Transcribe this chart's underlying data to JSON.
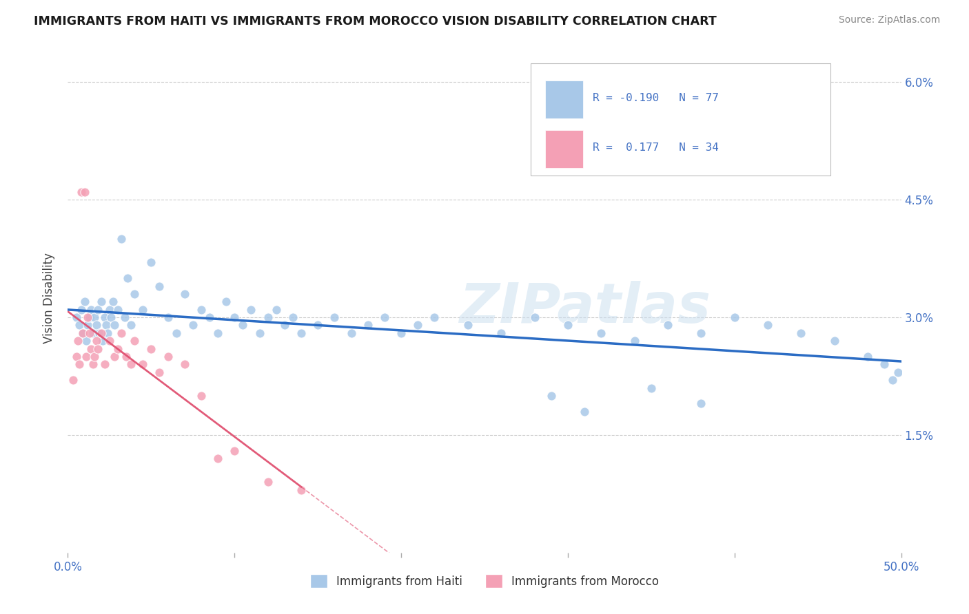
{
  "title": "IMMIGRANTS FROM HAITI VS IMMIGRANTS FROM MOROCCO VISION DISABILITY CORRELATION CHART",
  "source": "Source: ZipAtlas.com",
  "ylabel": "Vision Disability",
  "xlim": [
    0.0,
    0.5
  ],
  "ylim": [
    0.0,
    0.065
  ],
  "haiti_color": "#a8c8e8",
  "morocco_color": "#f4a0b5",
  "haiti_line_color": "#2b6cc4",
  "morocco_line_color": "#e05070",
  "haiti_R": -0.19,
  "haiti_N": 77,
  "morocco_R": 0.177,
  "morocco_N": 34,
  "legend_label_haiti": "Immigrants from Haiti",
  "legend_label_morocco": "Immigrants from Morocco",
  "watermark": "ZIPatlas",
  "tick_color": "#4472c4",
  "grid_color": "#cccccc",
  "haiti_x": [
    0.005,
    0.007,
    0.008,
    0.009,
    0.01,
    0.011,
    0.012,
    0.013,
    0.014,
    0.015,
    0.016,
    0.017,
    0.018,
    0.019,
    0.02,
    0.021,
    0.022,
    0.023,
    0.024,
    0.025,
    0.026,
    0.027,
    0.028,
    0.03,
    0.032,
    0.034,
    0.036,
    0.038,
    0.04,
    0.045,
    0.05,
    0.055,
    0.06,
    0.065,
    0.07,
    0.075,
    0.08,
    0.085,
    0.09,
    0.095,
    0.1,
    0.105,
    0.11,
    0.115,
    0.12,
    0.125,
    0.13,
    0.135,
    0.14,
    0.15,
    0.16,
    0.17,
    0.18,
    0.19,
    0.2,
    0.21,
    0.22,
    0.24,
    0.26,
    0.28,
    0.3,
    0.32,
    0.34,
    0.36,
    0.38,
    0.4,
    0.42,
    0.44,
    0.46,
    0.48,
    0.49,
    0.495,
    0.498,
    0.38,
    0.29,
    0.35,
    0.31
  ],
  "haiti_y": [
    0.03,
    0.029,
    0.031,
    0.028,
    0.032,
    0.027,
    0.029,
    0.03,
    0.031,
    0.028,
    0.03,
    0.029,
    0.031,
    0.028,
    0.032,
    0.027,
    0.03,
    0.029,
    0.028,
    0.031,
    0.03,
    0.032,
    0.029,
    0.031,
    0.04,
    0.03,
    0.035,
    0.029,
    0.033,
    0.031,
    0.037,
    0.034,
    0.03,
    0.028,
    0.033,
    0.029,
    0.031,
    0.03,
    0.028,
    0.032,
    0.03,
    0.029,
    0.031,
    0.028,
    0.03,
    0.031,
    0.029,
    0.03,
    0.028,
    0.029,
    0.03,
    0.028,
    0.029,
    0.03,
    0.028,
    0.029,
    0.03,
    0.029,
    0.028,
    0.03,
    0.029,
    0.028,
    0.027,
    0.029,
    0.028,
    0.03,
    0.029,
    0.028,
    0.027,
    0.025,
    0.024,
    0.022,
    0.023,
    0.019,
    0.02,
    0.021,
    0.018
  ],
  "morocco_x": [
    0.003,
    0.005,
    0.006,
    0.007,
    0.008,
    0.009,
    0.01,
    0.011,
    0.012,
    0.013,
    0.014,
    0.015,
    0.016,
    0.017,
    0.018,
    0.02,
    0.022,
    0.025,
    0.028,
    0.03,
    0.032,
    0.035,
    0.038,
    0.04,
    0.045,
    0.05,
    0.055,
    0.06,
    0.07,
    0.08,
    0.09,
    0.1,
    0.12,
    0.14
  ],
  "morocco_y": [
    0.022,
    0.025,
    0.027,
    0.024,
    0.046,
    0.028,
    0.046,
    0.025,
    0.03,
    0.028,
    0.026,
    0.024,
    0.025,
    0.027,
    0.026,
    0.028,
    0.024,
    0.027,
    0.025,
    0.026,
    0.028,
    0.025,
    0.024,
    0.027,
    0.024,
    0.026,
    0.023,
    0.025,
    0.024,
    0.02,
    0.012,
    0.013,
    0.009,
    0.008
  ]
}
